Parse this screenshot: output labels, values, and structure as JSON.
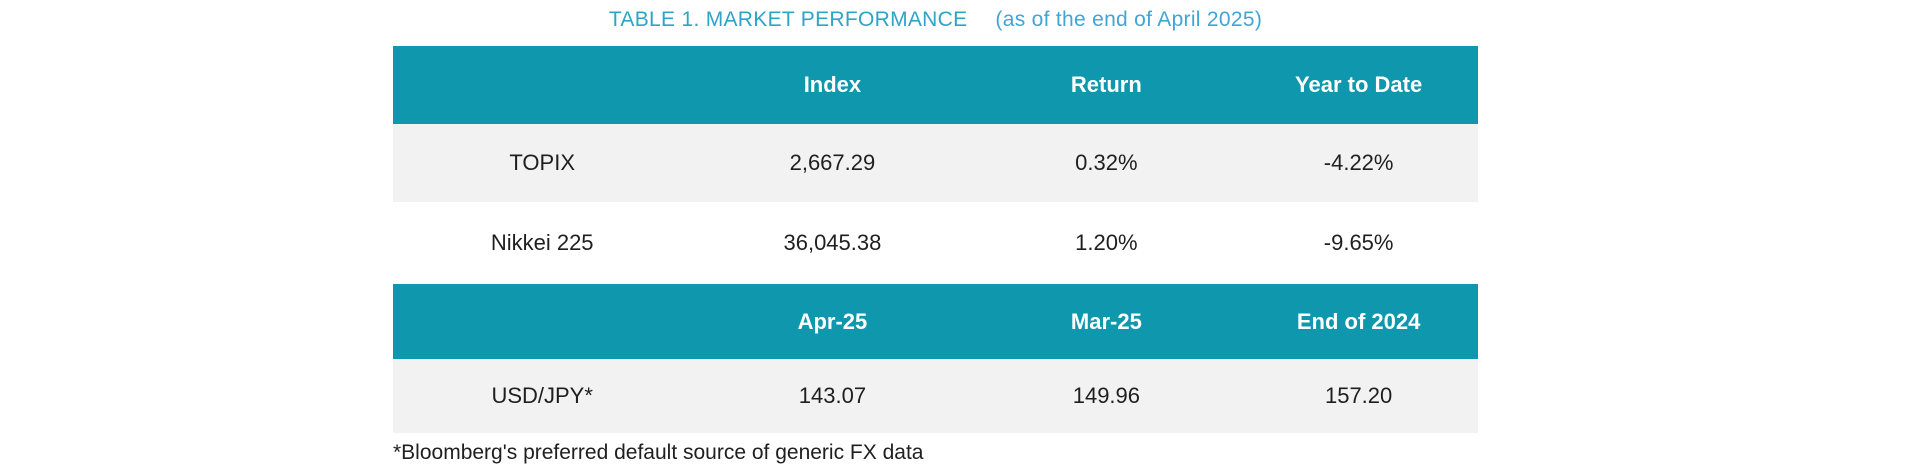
{
  "title": {
    "main": "TABLE 1. MARKET PERFORMANCE",
    "suffix": "(as of the end of April 2025)"
  },
  "colors": {
    "header_bg": "#0e97ad",
    "header_text": "#ffffff",
    "row_alt_bg": "#f2f2f2",
    "title_main": "#2da4c8",
    "title_suffix": "#41a5d6",
    "body_text": "#1f1f1f"
  },
  "index_table": {
    "headers": [
      "",
      "Index",
      "Return",
      "Year to Date"
    ],
    "rows": [
      {
        "label": "TOPIX",
        "index": "2,667.29",
        "return": "0.32%",
        "ytd": "-4.22%"
      },
      {
        "label": "Nikkei 225",
        "index": "36,045.38",
        "return": "1.20%",
        "ytd": "-9.65%"
      }
    ]
  },
  "fx_table": {
    "headers": [
      "",
      "Apr-25",
      "Mar-25",
      "End of 2024"
    ],
    "rows": [
      {
        "label": "USD/JPY*",
        "apr25": "143.07",
        "mar25": "149.96",
        "end_2024": "157.20"
      }
    ]
  },
  "footnote": "*Bloomberg's preferred default source of generic FX data"
}
